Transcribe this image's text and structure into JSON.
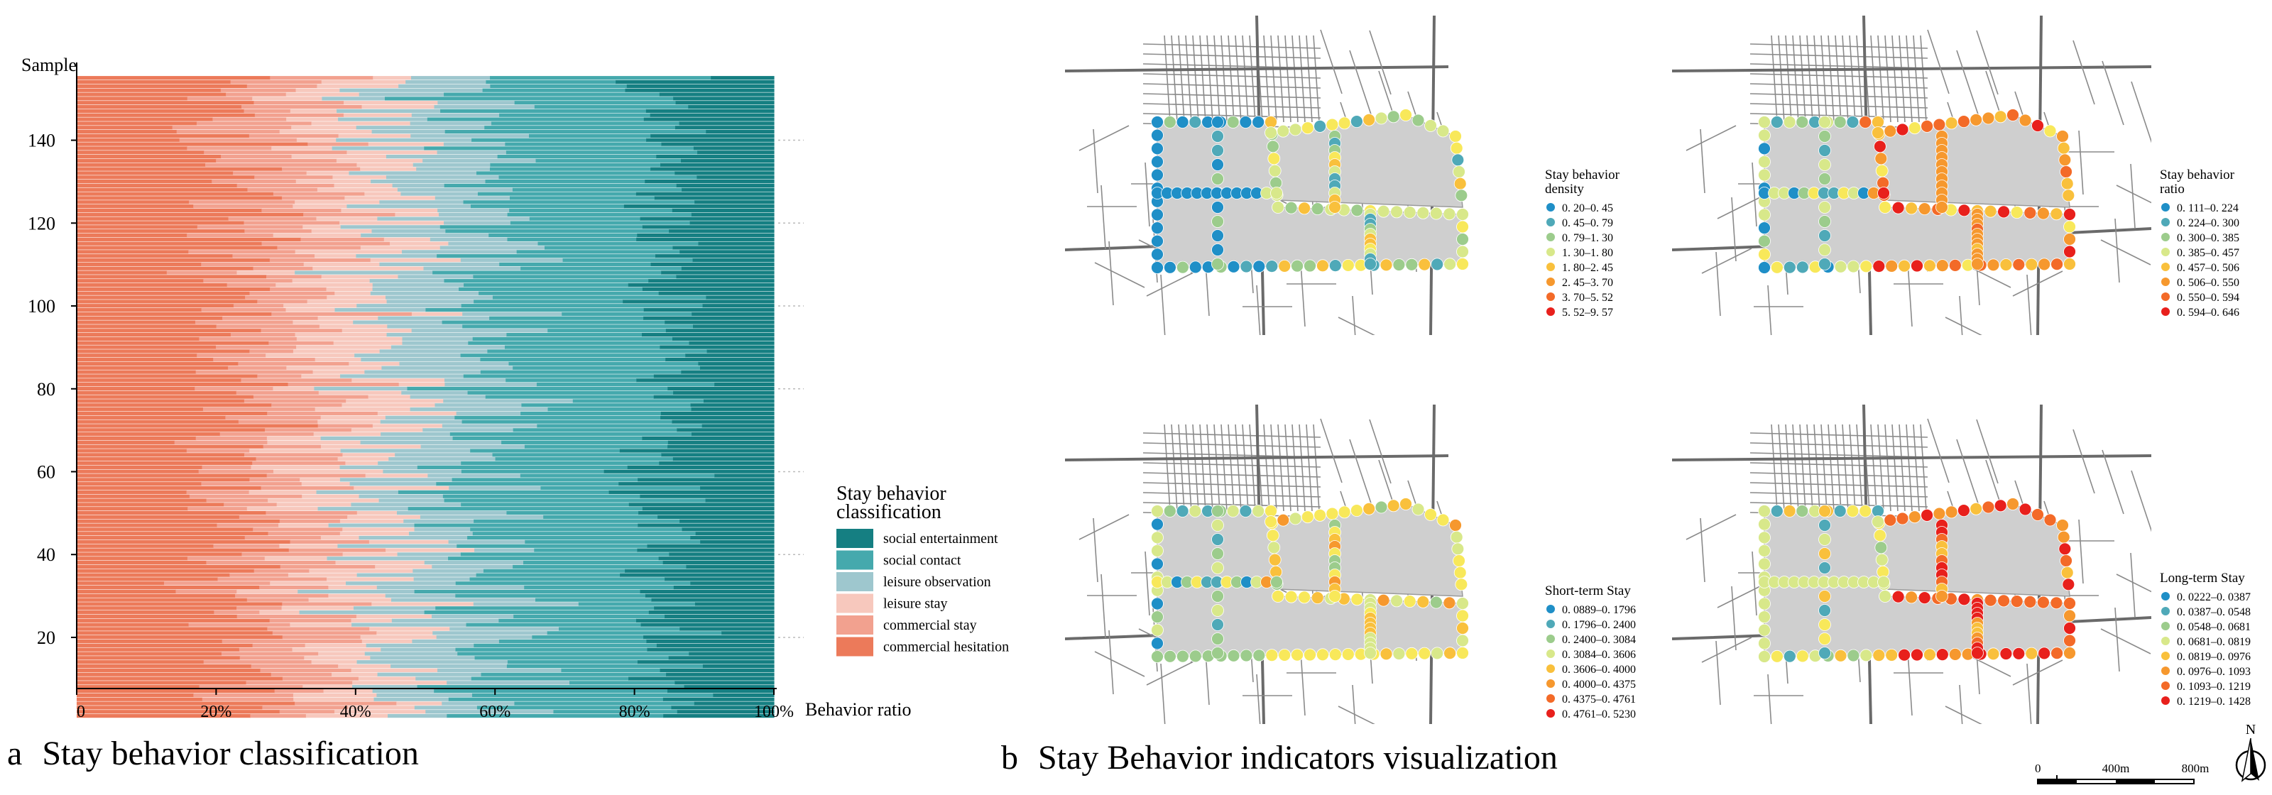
{
  "chart_data": [
    {
      "type": "bar",
      "subtype": "stacked-horizontal-100",
      "panel_letter": "a",
      "caption": "Stay behavior classification",
      "ylabel": "Sample",
      "xlabel": "Behavior ratio",
      "xlim": [
        0,
        1
      ],
      "ylim": [
        8,
        155
      ],
      "x_ticks": [
        "0",
        "20%",
        "40%",
        "60%",
        "80%",
        "100%"
      ],
      "y_ticks": [
        "20",
        "40",
        "60",
        "80",
        "100",
        "120",
        "140"
      ],
      "sample_count": 155,
      "legend_title_line1": "Stay behavior",
      "legend_title_line2": "classification",
      "series": [
        {
          "name": "social entertainment",
          "color": "#157f82",
          "avg_share": 0.15
        },
        {
          "name": "social contact",
          "color": "#45a9ad",
          "avg_share": 0.26
        },
        {
          "name": "leisure observation",
          "color": "#9ec7ce",
          "avg_share": 0.14
        },
        {
          "name": "leisure stay",
          "color": "#f7c8bd",
          "avg_share": 0.1
        },
        {
          "name": "commercial stay",
          "color": "#f2a18f",
          "avg_share": 0.12
        },
        {
          "name": "commercial hesitation",
          "color": "#ec7a5a",
          "avg_share": 0.23
        }
      ]
    },
    {
      "type": "map",
      "panel_letter": "b",
      "caption": "Stay Behavior indicators visualization",
      "maps": [
        {
          "title_line1": "Stay behavior",
          "title_line2": "density",
          "classes": [
            "0. 20–0. 45",
            "0. 45–0. 79",
            "0. 79–1. 30",
            "1. 30–1. 80",
            "1. 80–2. 45",
            "2. 45–3. 70",
            "3. 70–5. 52",
            "5. 52–9. 57"
          ]
        },
        {
          "title_line1": "Stay behavior",
          "title_line2": "ratio",
          "classes": [
            "0. 111–0. 224",
            "0. 224–0. 300",
            "0. 300–0. 385",
            "0. 385–0. 457",
            "0. 457–0. 506",
            "0. 506–0. 550",
            "0. 550–0. 594",
            "0. 594–0. 646"
          ]
        },
        {
          "title_line1": "Short-term Stay",
          "title_line2": "",
          "classes": [
            "0. 0889–0. 1796",
            "0. 1796–0. 2400",
            "0. 2400–0. 3084",
            "0. 3084–0. 3606",
            "0. 3606–0. 4000",
            "0. 4000–0. 4375",
            "0. 4375–0. 4761",
            "0. 4761–0. 5230"
          ]
        },
        {
          "title_line1": "Long-term Stay",
          "title_line2": "",
          "classes": [
            "0. 0222–0. 0387",
            "0. 0387–0. 0548",
            "0. 0548–0. 0681",
            "0. 0681–0. 0819",
            "0. 0819–0. 0976",
            "0. 0976–0. 1093",
            "0. 1093–0. 1219",
            "0. 1219–0. 1428"
          ]
        }
      ],
      "class_colors": [
        "#1f8fc7",
        "#4fa9b8",
        "#9ccc8c",
        "#d8e88a",
        "#f8e85a",
        "#f9c03c",
        "#f6982e",
        "#f36a28",
        "#e8201c"
      ],
      "scalebar": {
        "labels": [
          "0",
          "400m",
          "800m"
        ]
      },
      "north_label": "N"
    }
  ]
}
